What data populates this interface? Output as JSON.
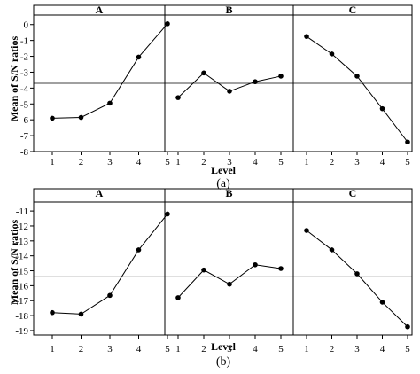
{
  "chart_data": [
    {
      "type": "line",
      "caption": "(a)",
      "ylabel": "Mean of S/N ratios",
      "xlabel": "Level",
      "ylim": [
        -8,
        0.6
      ],
      "yticks": [
        0,
        -1,
        -2,
        -3,
        -4,
        -5,
        -6,
        -7,
        -8
      ],
      "reference_line": -3.7,
      "panels": [
        {
          "title": "A",
          "x": [
            1,
            2,
            3,
            4,
            5
          ],
          "values": [
            -5.9,
            -5.85,
            -4.95,
            -2.05,
            0.05
          ]
        },
        {
          "title": "B",
          "x": [
            1,
            2,
            3,
            4,
            5
          ],
          "values": [
            -4.6,
            -3.05,
            -4.2,
            -3.6,
            -3.25
          ]
        },
        {
          "title": "C",
          "x": [
            1,
            2,
            3,
            4,
            5
          ],
          "values": [
            -0.75,
            -1.85,
            -3.25,
            -5.3,
            -7.4
          ]
        }
      ]
    },
    {
      "type": "line",
      "caption": "(b)",
      "ylabel": "Mean of S/N ratios",
      "xlabel": "Level",
      "ylim": [
        -19.3,
        -10.4
      ],
      "yticks": [
        -11,
        -12,
        -13,
        -14,
        -15,
        -16,
        -17,
        -18,
        -19
      ],
      "reference_line": -15.4,
      "panels": [
        {
          "title": "A",
          "x": [
            1,
            2,
            3,
            4,
            5
          ],
          "values": [
            -17.8,
            -17.9,
            -16.65,
            -13.6,
            -11.2
          ]
        },
        {
          "title": "B",
          "x": [
            1,
            2,
            3,
            4,
            5
          ],
          "values": [
            -16.8,
            -14.95,
            -15.9,
            -14.6,
            -14.85
          ]
        },
        {
          "title": "C",
          "x": [
            1,
            2,
            3,
            4,
            5
          ],
          "values": [
            -12.3,
            -13.6,
            -15.2,
            -17.1,
            -18.75
          ]
        }
      ]
    }
  ]
}
